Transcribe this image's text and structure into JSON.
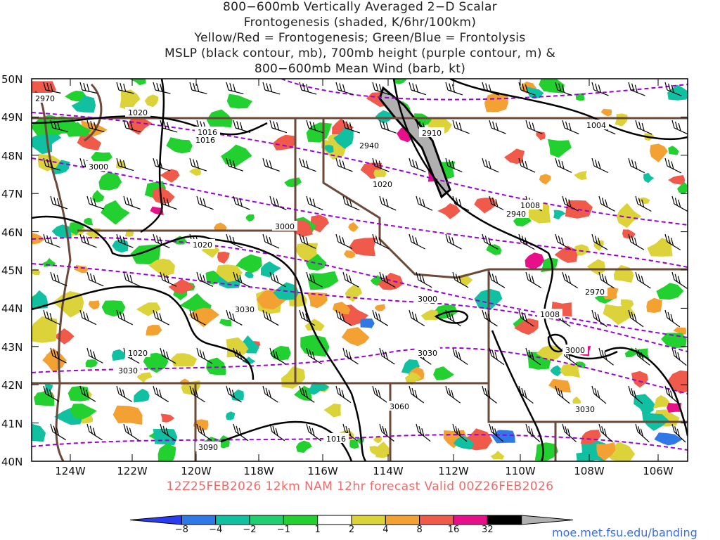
{
  "title_lines": [
    "800−600mb Vertically Averaged 2−D Scalar",
    "Frontogenesis (shaded, K/6hr/100km)",
    "Yellow/Red = Frontogenesis;  Green/Blue = Frontolysis",
    "MSLP (black contour, mb), 700mb height (purple contour, m) &",
    "800−600mb Mean Wind (barb, kt)"
  ],
  "lat_labels": [
    "50N",
    "49N",
    "48N",
    "47N",
    "46N",
    "45N",
    "44N",
    "43N",
    "42N",
    "41N",
    "40N"
  ],
  "lon_labels": [
    "124W",
    "122W",
    "120W",
    "118W",
    "116W",
    "114W",
    "112W",
    "110W",
    "108W",
    "106W"
  ],
  "subtitle": "12Z25FEB2026 12km NAM 12hr forecast Valid 00Z26FEB2026",
  "credit": "moe.met.fsu.edu/banding",
  "colorbar": {
    "labels": [
      "−8",
      "−4",
      "−2",
      "−1",
      "1",
      "2",
      "4",
      "8",
      "16",
      "32"
    ],
    "colors": [
      "#2b3cf0",
      "#2f78e6",
      "#10c0a0",
      "#20d070",
      "#22d030",
      "#ffffff",
      "#dcd33a",
      "#f2a132",
      "#f05a4a",
      "#e8108a",
      "#000000",
      "#b0b0b0"
    ]
  },
  "contour_labels": {
    "mslp": [
      "1020",
      "1016",
      "1020",
      "1016",
      "1004",
      "1008",
      "1020",
      "1016",
      "1008",
      "1020"
    ],
    "height": [
      "2970",
      "3000",
      "3000",
      "2940",
      "2910",
      "2940",
      "3030",
      "3000",
      "3030",
      "2970",
      "3000",
      "3030",
      "3060",
      "3030",
      "3090"
    ]
  },
  "colors": {
    "mslp": "#000000",
    "height": "#9b00d8",
    "border": "#6b4a3a",
    "frontogenesis_yellow": "#dcd33a",
    "frontogenesis_orange": "#f2a132",
    "frontogenesis_red": "#f05a4a",
    "frontogenesis_magenta": "#e8108a",
    "frontolysis_green": "#22d030",
    "frontolysis_teal": "#10c0a0",
    "frontolysis_blue": "#2f78e6"
  }
}
